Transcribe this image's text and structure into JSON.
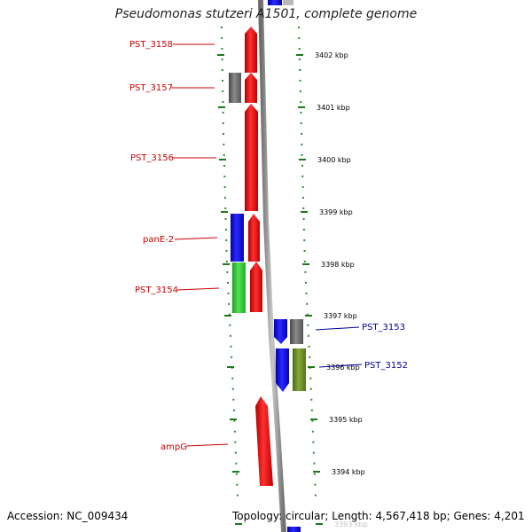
{
  "title": "Pseudomonas stutzeri A1501, complete genome",
  "footer": {
    "accession": "Accession: NC_009434",
    "summary": "Topology: circular; Length: 4,567,418 bp; Genes: 4,201"
  },
  "colors": {
    "forward_gene": "#ff0000",
    "forward_label": "#cc0000",
    "reverse_gene": "#0000ff",
    "reverse_label": "#000099",
    "grey_feature": "#707070",
    "green_feature": "#33cc33",
    "olive_feature": "#6b8e23",
    "tick": "#1a7a1a",
    "backbone": "#8c8c8c"
  },
  "scale_ticks": [
    {
      "label": "3402 kbp"
    },
    {
      "label": "3401 kbp"
    },
    {
      "label": "3400 kbp"
    },
    {
      "label": "3399 kbp"
    },
    {
      "label": "3398 kbp"
    },
    {
      "label": "3397 kbp"
    },
    {
      "label": "3396 kbp"
    },
    {
      "label": "3395 kbp"
    },
    {
      "label": "3394 kbp"
    },
    {
      "label": "3393 kbp"
    }
  ],
  "gene_labels": [
    {
      "text": "PST_3158",
      "strand": "forward"
    },
    {
      "text": "PST_3157",
      "strand": "forward"
    },
    {
      "text": "PST_3156",
      "strand": "forward"
    },
    {
      "text": "panE-2",
      "strand": "forward"
    },
    {
      "text": "PST_3154",
      "strand": "forward"
    },
    {
      "text": "PST_3153",
      "strand": "reverse"
    },
    {
      "text": "PST_3152",
      "strand": "reverse"
    },
    {
      "text": "ampG",
      "strand": "forward"
    }
  ]
}
